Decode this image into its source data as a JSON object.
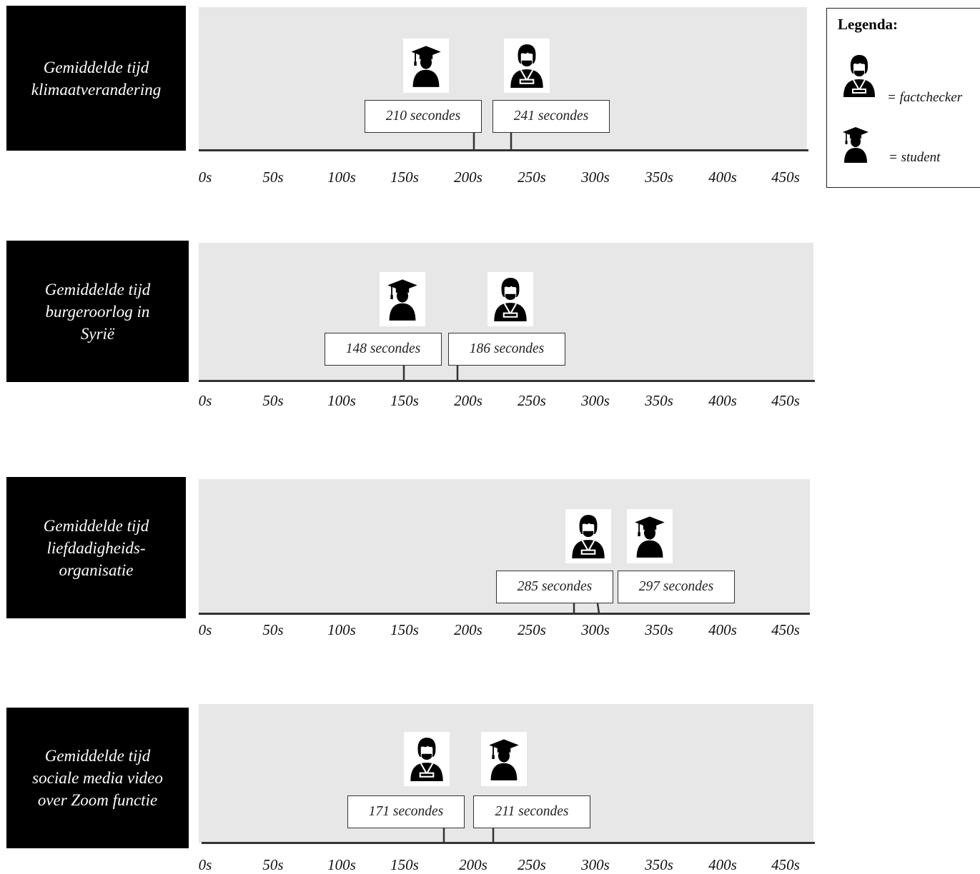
{
  "legend": {
    "title": "Legenda:",
    "items": [
      {
        "icon": "factchecker-icon",
        "label": "= factchecker"
      },
      {
        "icon": "student-icon",
        "label": "= student"
      }
    ]
  },
  "chart_data": [
    {
      "type": "timeline",
      "title": "Gemiddelde tijd\nklimaatverandering",
      "ticks": [
        "0s",
        "50s",
        "100s",
        "150s",
        "200s",
        "250s",
        "300s",
        "350s",
        "400s",
        "450s"
      ],
      "xlim": [
        0,
        450
      ],
      "series": [
        {
          "name": "student",
          "value": 210,
          "label": "210 secondes"
        },
        {
          "name": "factchecker",
          "value": 241,
          "label": "241 secondes"
        }
      ]
    },
    {
      "type": "timeline",
      "title": "Gemiddelde tijd\nburgeroorlog in\nSyrië",
      "ticks": [
        "0s",
        "50s",
        "100s",
        "150s",
        "200s",
        "250s",
        "300s",
        "350s",
        "400s",
        "450s"
      ],
      "xlim": [
        0,
        450
      ],
      "series": [
        {
          "name": "student",
          "value": 148,
          "label": "148 secondes"
        },
        {
          "name": "factchecker",
          "value": 186,
          "label": "186 secondes"
        }
      ]
    },
    {
      "type": "timeline",
      "title": "Gemiddelde tijd\nliefdadigheids-\norganisatie",
      "ticks": [
        "0s",
        "50s",
        "100s",
        "150s",
        "200s",
        "250s",
        "300s",
        "350s",
        "400s",
        "450s"
      ],
      "xlim": [
        0,
        450
      ],
      "series": [
        {
          "name": "factchecker",
          "value": 285,
          "label": "285 secondes"
        },
        {
          "name": "student",
          "value": 297,
          "label": "297 secondes"
        }
      ]
    },
    {
      "type": "timeline",
      "title": "Gemiddelde tijd\nsociale media video\nover Zoom functie",
      "ticks": [
        "0s",
        "50s",
        "100s",
        "150s",
        "200s",
        "250s",
        "300s",
        "350s",
        "400s",
        "450s"
      ],
      "xlim": [
        0,
        450
      ],
      "series": [
        {
          "name": "factchecker",
          "value": 171,
          "label": "171 secondes"
        },
        {
          "name": "student",
          "value": 211,
          "label": "211 secondes"
        }
      ]
    }
  ]
}
